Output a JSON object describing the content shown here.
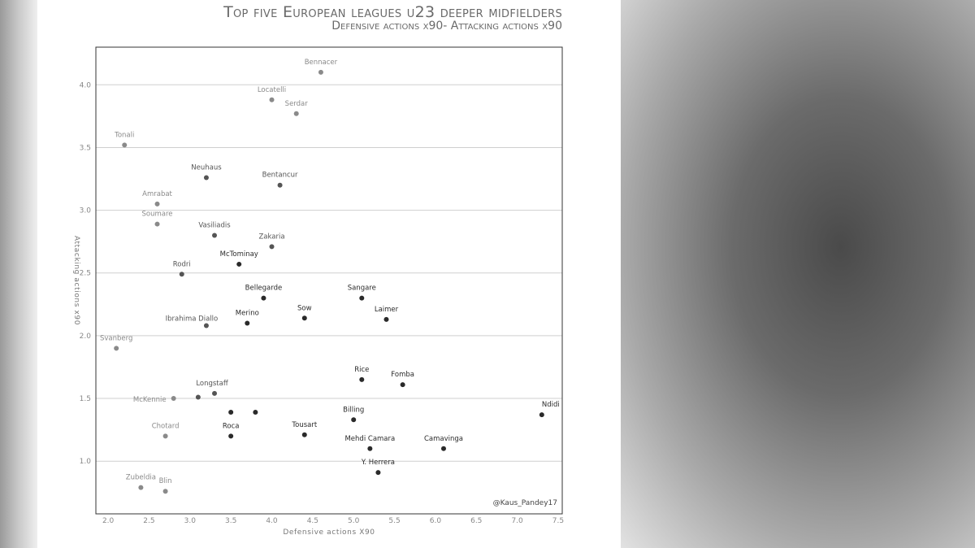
{
  "chart_data": {
    "type": "scatter",
    "title": "Top five European leagues u23 deeper midfielders",
    "subtitle": "Defensive actions x90- Attacking actions x90",
    "xlabel": "Defensive actions X90",
    "ylabel": "Attacking actions x90",
    "xlim": [
      1.85,
      7.55
    ],
    "ylim": [
      0.58,
      4.3
    ],
    "xticks": [
      "2.0",
      "2.5",
      "3.0",
      "3.5",
      "4.0",
      "4.5",
      "5.0",
      "5.5",
      "6.0",
      "6.5",
      "7.0",
      "7.5"
    ],
    "yticks": [
      "1.0",
      "1.5",
      "2.0",
      "2.5",
      "3.0",
      "3.5",
      "4.0"
    ],
    "grid": "horizontal",
    "credit": "@Kaus_Pandey17",
    "points": [
      {
        "label": "Bennacer",
        "x": 4.6,
        "y": 4.1
      },
      {
        "label": "Locatelli",
        "x": 4.0,
        "y": 3.88
      },
      {
        "label": "Serdar",
        "x": 4.3,
        "y": 3.77
      },
      {
        "label": "Tonali",
        "x": 2.2,
        "y": 3.52
      },
      {
        "label": "Neuhaus",
        "x": 3.2,
        "y": 3.26
      },
      {
        "label": "Bentancur",
        "x": 4.1,
        "y": 3.2
      },
      {
        "label": "Amrabat",
        "x": 2.6,
        "y": 3.05
      },
      {
        "label": "Soumare",
        "x": 2.6,
        "y": 2.89
      },
      {
        "label": "Vasiliadis",
        "x": 3.3,
        "y": 2.8
      },
      {
        "label": "Zakaria",
        "x": 4.0,
        "y": 2.71
      },
      {
        "label": "McTominay",
        "x": 3.6,
        "y": 2.57
      },
      {
        "label": "Rodri",
        "x": 2.9,
        "y": 2.49
      },
      {
        "label": "Bellegarde",
        "x": 3.9,
        "y": 2.3
      },
      {
        "label": "Sangare",
        "x": 5.1,
        "y": 2.3
      },
      {
        "label": "Sow",
        "x": 4.4,
        "y": 2.14
      },
      {
        "label": "Laimer",
        "x": 5.4,
        "y": 2.13
      },
      {
        "label": "Ibrahima Diallo",
        "x": 3.2,
        "y": 2.08
      },
      {
        "label": "Merino",
        "x": 3.7,
        "y": 2.1
      },
      {
        "label": "Svanberg",
        "x": 2.1,
        "y": 1.9
      },
      {
        "label": "Rice",
        "x": 5.1,
        "y": 1.65
      },
      {
        "label": "Fomba",
        "x": 5.6,
        "y": 1.61
      },
      {
        "label": "Longstaff",
        "x": 3.3,
        "y": 1.54
      },
      {
        "label": "McKennie",
        "x": 2.8,
        "y": 1.5
      },
      {
        "label": "",
        "x": 3.1,
        "y": 1.51
      },
      {
        "label": "",
        "x": 3.5,
        "y": 1.39
      },
      {
        "label": "",
        "x": 3.8,
        "y": 1.39
      },
      {
        "label": "Billing",
        "x": 5.0,
        "y": 1.33
      },
      {
        "label": "Ndidi",
        "x": 7.3,
        "y": 1.37
      },
      {
        "label": "Chotard",
        "x": 2.7,
        "y": 1.2
      },
      {
        "label": "Roca",
        "x": 3.5,
        "y": 1.2
      },
      {
        "label": "Tousart",
        "x": 4.4,
        "y": 1.21
      },
      {
        "label": "Mehdi Camara",
        "x": 5.2,
        "y": 1.1
      },
      {
        "label": "Camavinga",
        "x": 6.1,
        "y": 1.1
      },
      {
        "label": "Y. Herrera",
        "x": 5.3,
        "y": 0.91
      },
      {
        "label": "Zubeldia",
        "x": 2.4,
        "y": 0.79
      },
      {
        "label": "Blin",
        "x": 2.7,
        "y": 0.76
      }
    ],
    "colors": {
      "point_dark": "#2a2a2a",
      "point_mid": "#555555",
      "point_light": "#8a8a8a",
      "grid": "#cfcfcf",
      "frame": "#333333"
    }
  }
}
